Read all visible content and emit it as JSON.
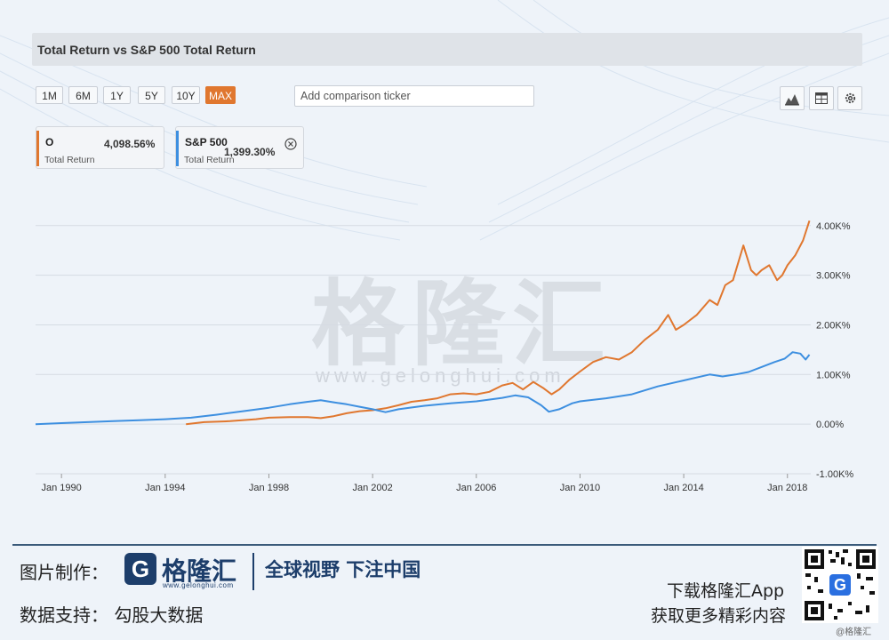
{
  "title": "Total Return vs S&P 500 Total Return",
  "ranges": [
    {
      "label": "1M",
      "active": false
    },
    {
      "label": "6M",
      "active": false
    },
    {
      "label": "1Y",
      "active": false
    },
    {
      "label": "5Y",
      "active": false
    },
    {
      "label": "10Y",
      "active": false
    },
    {
      "label": "MAX",
      "active": true
    }
  ],
  "compare": {
    "placeholder": "Add comparison ticker"
  },
  "tools": [
    "area-chart-icon",
    "table-icon",
    "settings-icon"
  ],
  "legend": [
    {
      "name": "O",
      "value": "4,098.56%",
      "sub": "Total Return",
      "color": "#e0772f"
    },
    {
      "name": "S&P 500",
      "value": "1,399.30%",
      "sub": "Total Return",
      "color": "#3d8fe0"
    }
  ],
  "watermark": {
    "text": "格隆汇",
    "url": "www.gelonghui.com"
  },
  "footer": {
    "made_by": "图片制作：",
    "logo_letter": "G",
    "logo_name": "格隆汇",
    "logo_url": "www.gelonghui.com",
    "slogan": "全球视野 下注中国",
    "data_support": "数据支持：  勾股大数据",
    "download": "下载格隆汇App",
    "more": "获取更多精彩内容",
    "credit": "@格隆汇"
  },
  "colors": {
    "o": "#e0772f",
    "sp500": "#3d8fe0",
    "grid": "#d5dbe3",
    "axis_text": "#333333"
  },
  "chart_data": {
    "type": "line",
    "title": "Total Return vs S&P 500 Total Return",
    "x_unit": "year",
    "xlim": [
      1989.0,
      2018.9
    ],
    "ylim": [
      -1000,
      4300
    ],
    "y_ticks": [
      {
        "value": 4000,
        "label": "4.00K%"
      },
      {
        "value": 3000,
        "label": "3.00K%"
      },
      {
        "value": 2000,
        "label": "2.00K%"
      },
      {
        "value": 1000,
        "label": "1.00K%"
      },
      {
        "value": 0,
        "label": "0.00%"
      },
      {
        "value": -1000,
        "label": "-1.00K%"
      }
    ],
    "x_ticks": [
      {
        "value": 1990,
        "label": "Jan 1990"
      },
      {
        "value": 1994,
        "label": "Jan 1994"
      },
      {
        "value": 1998,
        "label": "Jan 1998"
      },
      {
        "value": 2002,
        "label": "Jan 2002"
      },
      {
        "value": 2006,
        "label": "Jan 2006"
      },
      {
        "value": 2010,
        "label": "Jan 2010"
      },
      {
        "value": 2014,
        "label": "Jan 2014"
      },
      {
        "value": 2018,
        "label": "Jan 2018"
      }
    ],
    "grid": true,
    "series": [
      {
        "name": "O",
        "x": [
          1994.8,
          1995.5,
          1996.5,
          1997.5,
          1998.0,
          1998.8,
          1999.5,
          2000.0,
          2000.5,
          2001.0,
          2001.5,
          2002.0,
          2002.5,
          2003.0,
          2003.5,
          2004.0,
          2004.5,
          2005.0,
          2005.5,
          2006.0,
          2006.5,
          2007.0,
          2007.4,
          2007.8,
          2008.2,
          2008.6,
          2008.9,
          2009.2,
          2009.6,
          2010.0,
          2010.5,
          2011.0,
          2011.5,
          2012.0,
          2012.5,
          2013.0,
          2013.4,
          2013.7,
          2014.0,
          2014.5,
          2015.0,
          2015.3,
          2015.6,
          2015.9,
          2016.3,
          2016.6,
          2016.8,
          2017.0,
          2017.3,
          2017.6,
          2017.8,
          2018.0,
          2018.3,
          2018.6,
          2018.85
        ],
        "values": [
          0,
          40,
          60,
          100,
          130,
          140,
          140,
          120,
          160,
          220,
          260,
          280,
          320,
          380,
          450,
          480,
          520,
          600,
          620,
          600,
          650,
          780,
          830,
          700,
          850,
          720,
          600,
          700,
          900,
          1060,
          1250,
          1350,
          1300,
          1450,
          1700,
          1900,
          2200,
          1900,
          2000,
          2200,
          2500,
          2400,
          2800,
          2900,
          3600,
          3100,
          3000,
          3100,
          3200,
          2900,
          3000,
          3200,
          3400,
          3700,
          4098.56
        ]
      },
      {
        "name": "S&P 500",
        "x": [
          1989.0,
          1990.0,
          1991.0,
          1992.0,
          1993.0,
          1994.0,
          1995.0,
          1996.0,
          1997.0,
          1998.0,
          1998.8,
          1999.5,
          2000.0,
          2000.5,
          2001.0,
          2001.5,
          2002.0,
          2002.5,
          2003.0,
          2004.0,
          2005.0,
          2006.0,
          2007.0,
          2007.5,
          2008.0,
          2008.5,
          2008.8,
          2009.2,
          2009.7,
          2010.0,
          2011.0,
          2012.0,
          2013.0,
          2014.0,
          2015.0,
          2015.5,
          2016.0,
          2016.5,
          2017.0,
          2017.5,
          2017.9,
          2018.2,
          2018.5,
          2018.7,
          2018.85
        ],
        "values": [
          0,
          20,
          40,
          60,
          80,
          100,
          130,
          190,
          260,
          330,
          400,
          450,
          480,
          440,
          400,
          350,
          300,
          240,
          300,
          370,
          420,
          460,
          530,
          580,
          540,
          380,
          250,
          300,
          420,
          460,
          520,
          600,
          760,
          880,
          1000,
          960,
          1000,
          1050,
          1150,
          1250,
          1320,
          1450,
          1420,
          1300,
          1399.3
        ]
      }
    ]
  }
}
